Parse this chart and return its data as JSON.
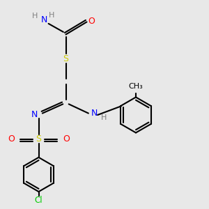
{
  "background_color": "#e8e8e8",
  "bond_color": "#000000",
  "atom_colors": {
    "N": "#0000ff",
    "O": "#ff0000",
    "S": "#cccc00",
    "Cl": "#00cc00",
    "H": "#808080",
    "C": "#000000"
  }
}
